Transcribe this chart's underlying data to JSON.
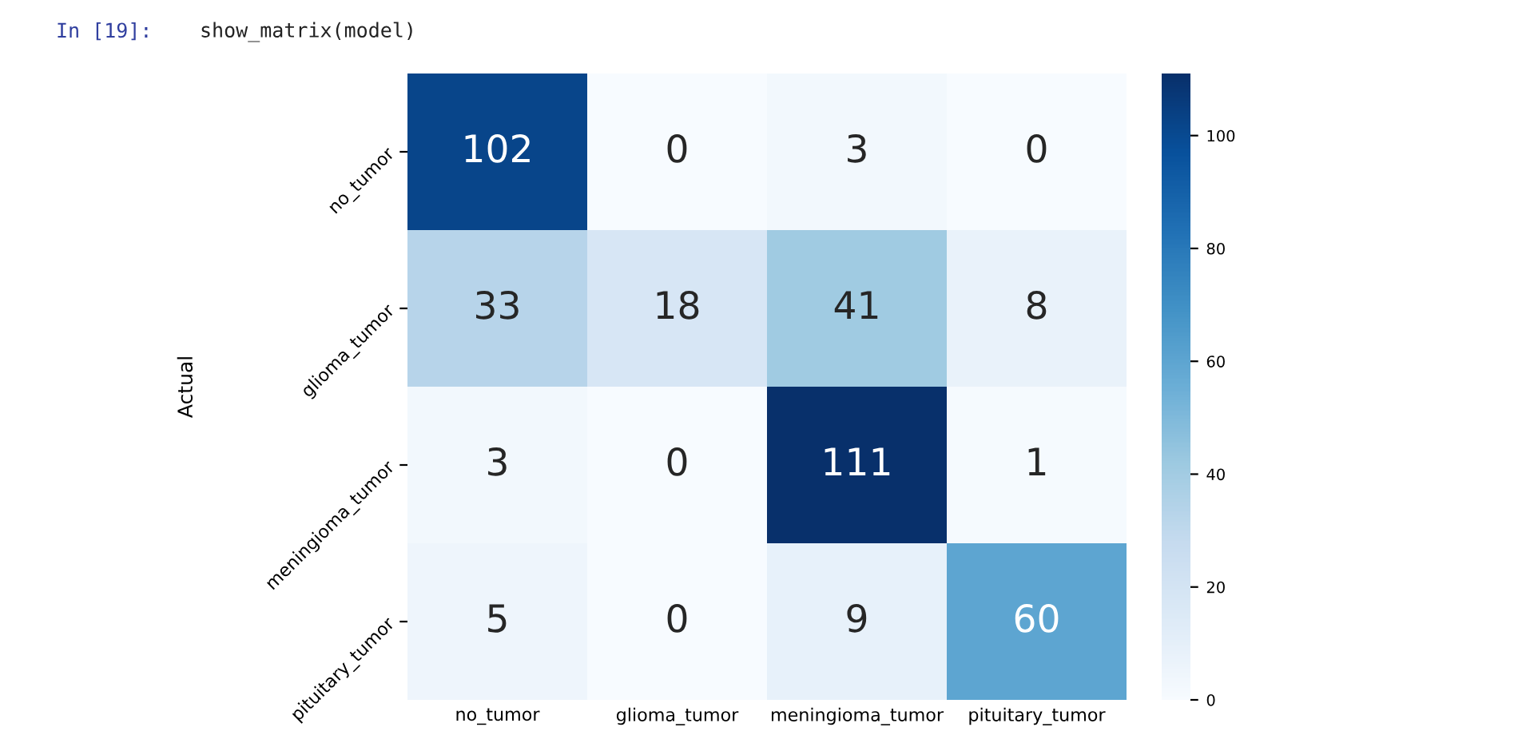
{
  "chart_data": {
    "type": "heatmap",
    "ylabel": "Actual",
    "annotations": [
      "In [19]:",
      "show_matrix(model)"
    ],
    "categories": [
      "no_tumor",
      "glioma_tumor",
      "meningioma_tumor",
      "pituitary_tumor"
    ],
    "y_categories": [
      "no_tumor",
      "glioma_tumor",
      "meningioma_tumor",
      "pituitary_tumor"
    ],
    "cells": [
      [
        102,
        0,
        3,
        0
      ],
      [
        33,
        18,
        41,
        8
      ],
      [
        3,
        0,
        111,
        1
      ],
      [
        5,
        0,
        9,
        60
      ]
    ],
    "data_labels": true,
    "clim": [
      0,
      111
    ],
    "cticks": [
      0,
      20,
      40,
      60,
      80,
      100
    ]
  }
}
